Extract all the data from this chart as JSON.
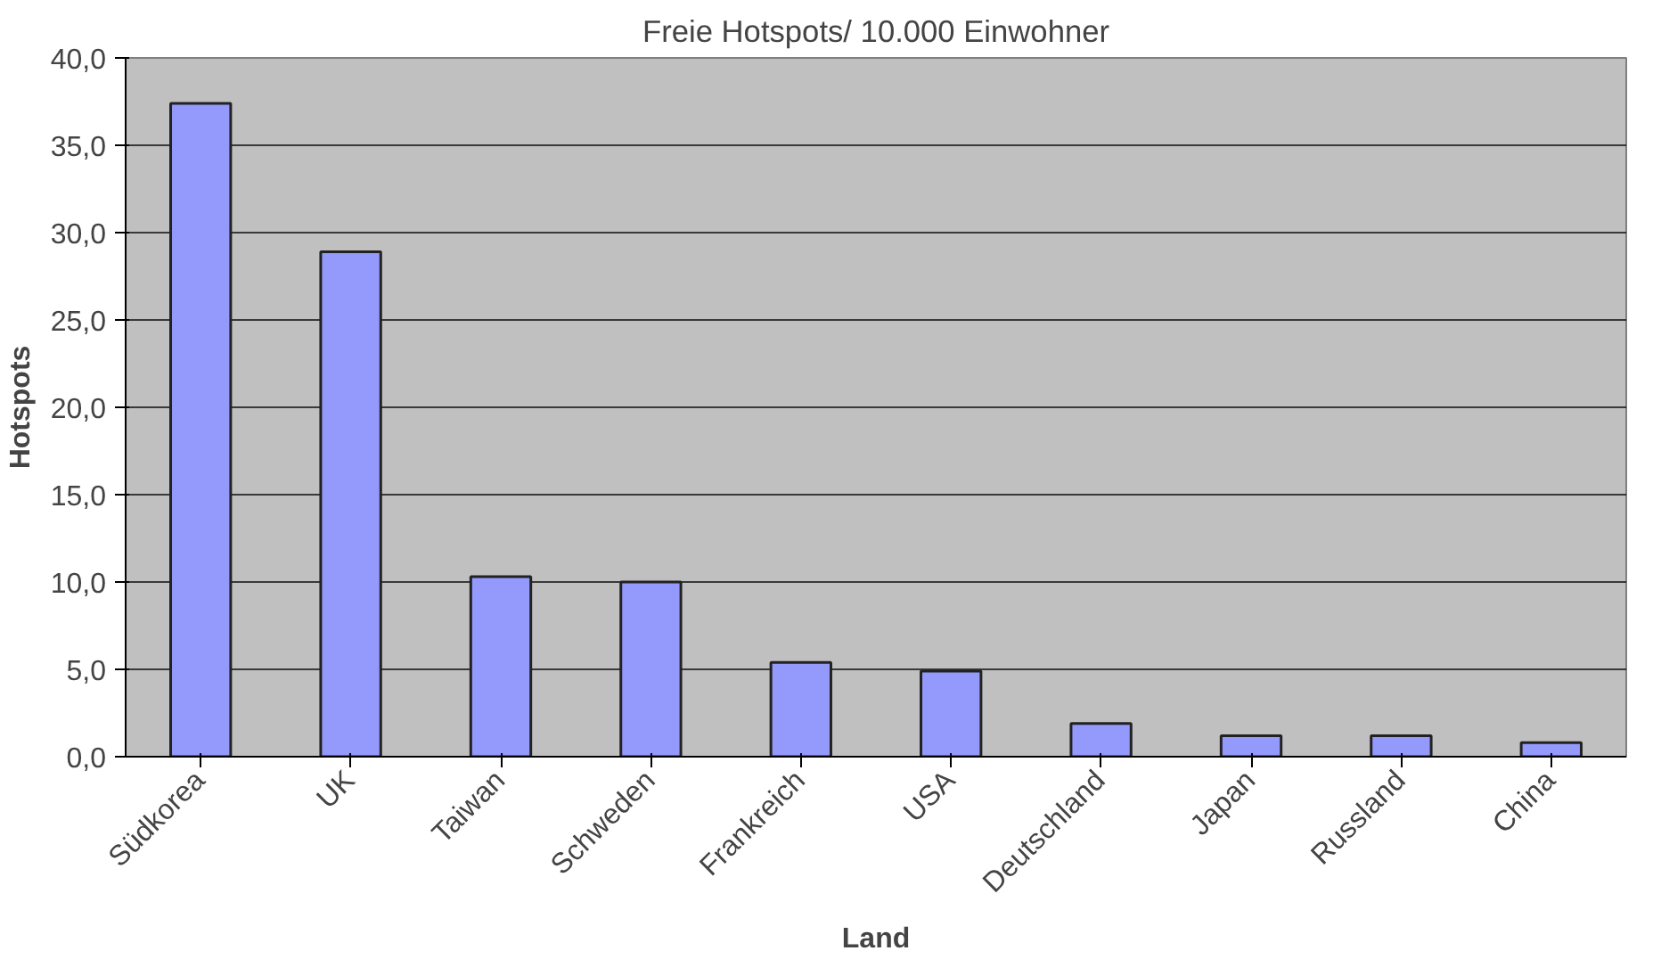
{
  "chart_data": {
    "type": "bar",
    "title": "Freie Hotspots/ 10.000 Einwohner",
    "xlabel": "Land",
    "ylabel": "Hotspots",
    "categories": [
      "Südkorea",
      "UK",
      "Taiwan",
      "Schweden",
      "Frankreich",
      "USA",
      "Deutschland",
      "Japan",
      "Russland",
      "China"
    ],
    "values": [
      37.4,
      28.9,
      10.3,
      10.0,
      5.4,
      4.9,
      1.9,
      1.2,
      1.2,
      0.8
    ],
    "color": "#9499fc",
    "ylim": [
      0,
      40
    ],
    "yticks": [
      {
        "value": 0,
        "label": "0,0"
      },
      {
        "value": 5,
        "label": "5,0"
      },
      {
        "value": 10,
        "label": "10,0"
      },
      {
        "value": 15,
        "label": "15,0"
      },
      {
        "value": 20,
        "label": "20,0"
      },
      {
        "value": 25,
        "label": "25,0"
      },
      {
        "value": 30,
        "label": "30,0"
      },
      {
        "value": 35,
        "label": "35,0"
      },
      {
        "value": 40,
        "label": "40,0"
      }
    ],
    "grid": "y"
  }
}
